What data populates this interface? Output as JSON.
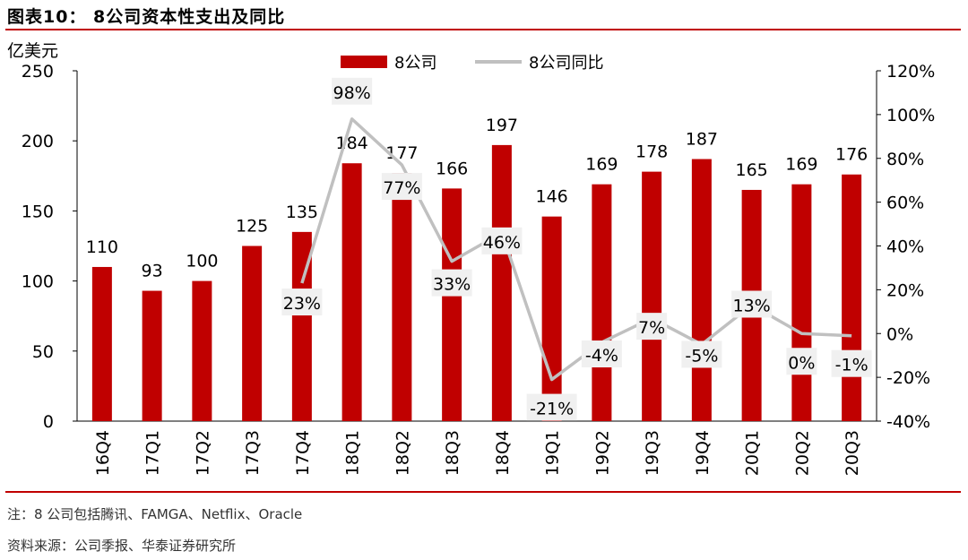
{
  "figure_title": "图表10： 8公司资本性支出及同比",
  "notes": {
    "note": "注：8 公司包括腾讯、FAMGA、Netflix、Oracle",
    "source": "资料来源：公司季报、华泰证券研究所"
  },
  "colors": {
    "bar": "#c00000",
    "line": "#c0c0c0",
    "rule": "#c00000"
  },
  "chart_data": {
    "type": "bar",
    "title": "8公司资本性支出及同比",
    "categories": [
      "16Q4",
      "17Q1",
      "17Q2",
      "17Q3",
      "17Q4",
      "18Q1",
      "18Q2",
      "18Q3",
      "18Q4",
      "19Q1",
      "19Q2",
      "19Q3",
      "19Q4",
      "20Q1",
      "20Q2",
      "20Q3"
    ],
    "series": [
      {
        "name": "8公司",
        "type": "bar",
        "axis": "left",
        "values": [
          110,
          93,
          100,
          125,
          135,
          184,
          177,
          166,
          197,
          146,
          169,
          178,
          187,
          165,
          169,
          176
        ]
      },
      {
        "name": "8公司同比",
        "type": "line",
        "axis": "right",
        "values": [
          null,
          null,
          null,
          null,
          23,
          98,
          77,
          33,
          46,
          -21,
          -4,
          7,
          -5,
          13,
          0,
          -1
        ],
        "labels": [
          "",
          "",
          "",
          "",
          "23%",
          "98%",
          "77%",
          "33%",
          "46%",
          "-21%",
          "-4%",
          "7%",
          "-5%",
          "13%",
          "0%",
          "-1%"
        ]
      }
    ],
    "ylabel": "亿美元",
    "ylim": [
      0,
      250
    ],
    "yticks": [
      "0",
      "50",
      "100",
      "150",
      "200",
      "250"
    ],
    "y2lim": [
      -40,
      120
    ],
    "y2ticks": [
      "-40%",
      "-20%",
      "0%",
      "20%",
      "40%",
      "60%",
      "80%",
      "100%",
      "120%"
    ],
    "legend": "top-center"
  }
}
